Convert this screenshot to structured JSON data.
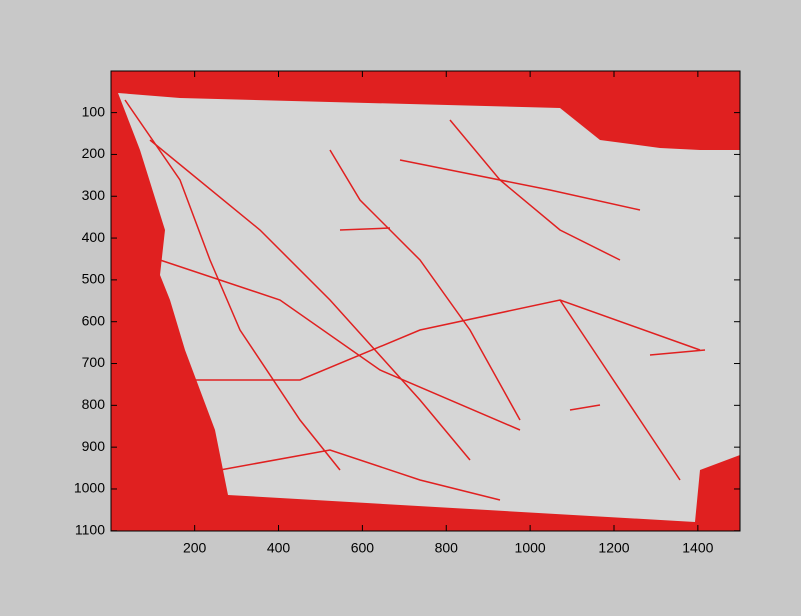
{
  "chart_data": {
    "type": "image",
    "color": "#e02020",
    "xlim": [
      0.5,
      1500.5
    ],
    "ylim": [
      0.5,
      1100.5
    ],
    "y_reversed": true,
    "xticks": [
      200,
      400,
      600,
      800,
      1000,
      1200,
      1400
    ],
    "yticks": [
      100,
      200,
      300,
      400,
      500,
      600,
      700,
      800,
      900,
      1000,
      1100
    ]
  }
}
